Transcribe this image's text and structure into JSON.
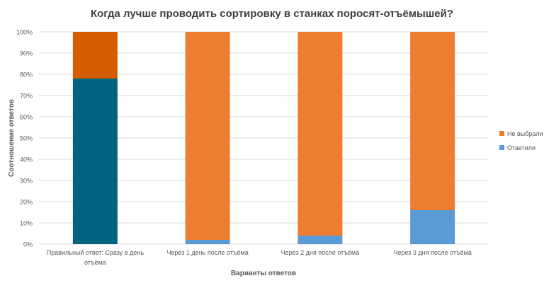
{
  "chart_data": {
    "type": "bar",
    "stacked": true,
    "title": "Когда лучше проводить сортировку в станках поросят-отъёмышей?",
    "xlabel": "Варианты ответов",
    "ylabel": "Соотношение ответов",
    "ylim": [
      0,
      100
    ],
    "yticks": [
      "0%",
      "10%",
      "20%",
      "30%",
      "40%",
      "50%",
      "60%",
      "70%",
      "80%",
      "90%",
      "100%"
    ],
    "categories": [
      [
        "Правильный ответ: Сразу в день",
        "отъёма"
      ],
      [
        "Через 1 день после отъёма"
      ],
      [
        "Через 2 дня после отъёма"
      ],
      [
        "Через 3 дня после отъёма"
      ]
    ],
    "series": [
      {
        "name": "Ответили",
        "values": [
          78,
          2,
          4,
          16
        ],
        "color": "#5B9BD5",
        "highlight_color": "#00637F"
      },
      {
        "name": "Не выбрали",
        "values": [
          22,
          98,
          96,
          84
        ],
        "color": "#ED7D31",
        "highlight_color": "#D55E00"
      }
    ],
    "highlight_index": 0,
    "legend": {
      "position": "right",
      "items": [
        "Не выбрали",
        "Ответили"
      ]
    },
    "grid": true
  }
}
